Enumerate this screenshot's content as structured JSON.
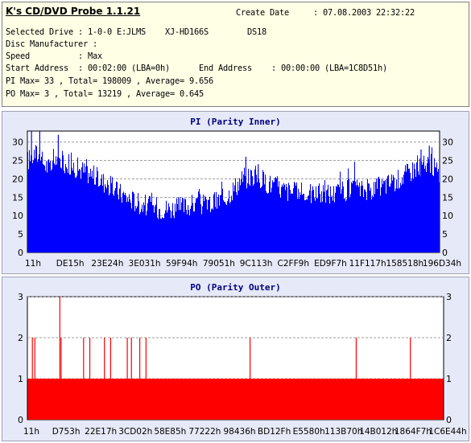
{
  "header": {
    "app_title": "K's CD/DVD Probe 1.1.21",
    "create_date_line": "Create Date     : 07.08.2003 22:32:22",
    "drive_line": "Selected Drive : 1-0-0 E:JLMS    XJ-HD166S        DS18",
    "manufacturer_line": "Disc Manufacturer :",
    "speed_line": "Speed          : Max",
    "address_line": "Start Address  : 00:02:00 (LBA=0h)      End Address    : 00:00:00 (LBA=1C8D51h)",
    "pi_stats_line": "PI Max= 33 , Total= 198009 , Average= 9.656",
    "po_stats_line": "PO Max= 3 , Total= 13219 , Average= 0.645"
  },
  "chart_data": [
    {
      "type": "area",
      "title": "PI (Parity Inner)",
      "ylim": [
        0,
        33
      ],
      "yticks": [
        0,
        5,
        10,
        15,
        20,
        25,
        30
      ],
      "xtick_labels": [
        "11h",
        "DE15h",
        "23E24h",
        "3E031h",
        "59F94h",
        "79051h",
        "9C113h",
        "C2FF9h",
        "ED9F7h",
        "11F117h",
        "158518h",
        "196D34h"
      ],
      "grid": true,
      "color": "#0000ff",
      "envelope": [
        {
          "x": 0.0,
          "y": 25
        },
        {
          "x": 0.02,
          "y": 27
        },
        {
          "x": 0.05,
          "y": 23
        },
        {
          "x": 0.08,
          "y": 25
        },
        {
          "x": 0.12,
          "y": 23
        },
        {
          "x": 0.16,
          "y": 21
        },
        {
          "x": 0.2,
          "y": 18
        },
        {
          "x": 0.24,
          "y": 15
        },
        {
          "x": 0.28,
          "y": 13
        },
        {
          "x": 0.32,
          "y": 12
        },
        {
          "x": 0.36,
          "y": 12
        },
        {
          "x": 0.4,
          "y": 13
        },
        {
          "x": 0.44,
          "y": 13
        },
        {
          "x": 0.48,
          "y": 15
        },
        {
          "x": 0.52,
          "y": 20
        },
        {
          "x": 0.55,
          "y": 21
        },
        {
          "x": 0.58,
          "y": 19
        },
        {
          "x": 0.62,
          "y": 17
        },
        {
          "x": 0.66,
          "y": 16
        },
        {
          "x": 0.7,
          "y": 16
        },
        {
          "x": 0.74,
          "y": 16
        },
        {
          "x": 0.78,
          "y": 17
        },
        {
          "x": 0.82,
          "y": 17
        },
        {
          "x": 0.86,
          "y": 18
        },
        {
          "x": 0.9,
          "y": 20
        },
        {
          "x": 0.94,
          "y": 23
        },
        {
          "x": 0.98,
          "y": 24
        },
        {
          "x": 1.0,
          "y": 21
        }
      ],
      "spikes": [
        {
          "x": 0.01,
          "y": 33
        },
        {
          "x": 0.03,
          "y": 33
        },
        {
          "x": 0.075,
          "y": 32
        },
        {
          "x": 0.53,
          "y": 26
        },
        {
          "x": 0.56,
          "y": 24
        },
        {
          "x": 0.955,
          "y": 28
        },
        {
          "x": 0.975,
          "y": 29
        }
      ]
    },
    {
      "type": "bar",
      "title": "PO (Parity Outer)",
      "ylim": [
        0,
        3
      ],
      "yticks": [
        0,
        1,
        2,
        3
      ],
      "xtick_labels": [
        "11h",
        "D753h",
        "22E17h",
        "3CD02h",
        "58E85h",
        "77222h",
        "98436h",
        "BD12Fh",
        "E5580h",
        "113B70h",
        "14B012h",
        "1864F7h",
        "1C6E44h"
      ],
      "grid": true,
      "color": "#ff0000",
      "baseline": 1,
      "spikes": [
        {
          "x": 0.012,
          "y": 2
        },
        {
          "x": 0.018,
          "y": 2
        },
        {
          "x": 0.078,
          "y": 3
        },
        {
          "x": 0.081,
          "y": 2
        },
        {
          "x": 0.135,
          "y": 2
        },
        {
          "x": 0.15,
          "y": 2
        },
        {
          "x": 0.185,
          "y": 2
        },
        {
          "x": 0.2,
          "y": 2
        },
        {
          "x": 0.24,
          "y": 2
        },
        {
          "x": 0.25,
          "y": 2
        },
        {
          "x": 0.27,
          "y": 2
        },
        {
          "x": 0.285,
          "y": 2
        },
        {
          "x": 0.535,
          "y": 2
        },
        {
          "x": 0.79,
          "y": 2
        },
        {
          "x": 0.92,
          "y": 2
        }
      ]
    }
  ]
}
